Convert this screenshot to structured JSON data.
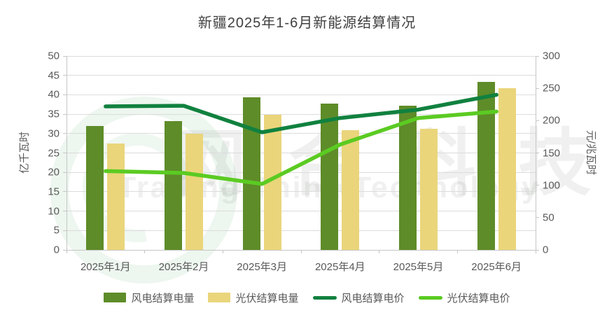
{
  "title": "新疆2025年1-6月新能源结算情况",
  "watermark": {
    "cn": "网合科技",
    "en": "Trading Think Technology"
  },
  "colors": {
    "wind_bar": "#5E8C29",
    "solar_bar": "#EAD57B",
    "wind_line": "#11813F",
    "solar_line": "#5BCB22",
    "title_text": "#3f3f3f",
    "axis_text": "#595959",
    "gridline": "#dcdcdc",
    "axis_line": "#c6c6c6"
  },
  "chart_data": {
    "type": "bar",
    "categories": [
      "2025年1月",
      "2025年2月",
      "2025年3月",
      "2025年4月",
      "2025年5月",
      "2025年6月"
    ],
    "series": [
      {
        "name": "风电结算电量",
        "type": "bar",
        "axis": "left",
        "color": "#5E8C29",
        "values": [
          31.9,
          33.3,
          39.3,
          37.8,
          37.2,
          43.3
        ]
      },
      {
        "name": "光伏结算电量",
        "type": "bar",
        "axis": "left",
        "color": "#EAD57B",
        "values": [
          27.5,
          30.0,
          34.8,
          30.9,
          31.2,
          41.7
        ]
      },
      {
        "name": "风电结算电价",
        "type": "line",
        "axis": "right",
        "color": "#11813F",
        "values": [
          222,
          223,
          182,
          204,
          217,
          240
        ]
      },
      {
        "name": "光伏结算电价",
        "type": "line",
        "axis": "right",
        "color": "#5BCB22",
        "values": [
          122,
          119,
          102,
          163,
          204,
          214
        ]
      }
    ],
    "left_axis": {
      "label": "亿千瓦时",
      "min": 0,
      "max": 50,
      "step": 5
    },
    "right_axis": {
      "label": "元/兆瓦时",
      "min": 0,
      "max": 300,
      "step": 50
    },
    "grid": true,
    "legend_position": "bottom"
  }
}
